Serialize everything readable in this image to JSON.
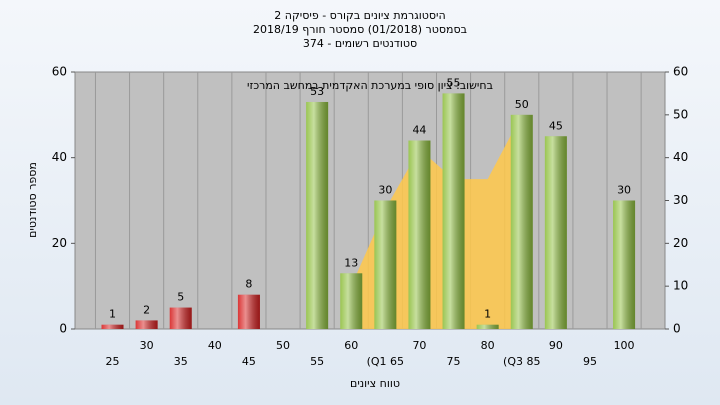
{
  "chart_data": {
    "type": "bar",
    "title": [
      "היסטוגרמת ציונים בקורס - פיסיקה 2",
      "בסמסטר (01/2018) סמסטר חורף 2018/19",
      "סטודנטים רשומים - 374"
    ],
    "annotation": "בחישוב: ציון סופי במערכת האקדמית במחשב המרכזי",
    "x_label": "טווח ציונים",
    "y_label": "מספר סטודנטים",
    "categories": [
      "25",
      "30",
      "35",
      "40",
      "45",
      "50",
      "55",
      "60",
      "(Q1 65",
      "70",
      "75",
      "80",
      "(Q3 85",
      "90",
      "95",
      "100"
    ],
    "values": [
      1,
      2,
      5,
      null,
      8,
      null,
      53,
      13,
      30,
      44,
      55,
      1,
      50,
      45,
      null,
      30
    ],
    "colors": [
      "#d62020",
      "#d62020",
      "#d62020",
      null,
      "#d62020",
      null,
      "#8fbf3f",
      "#8fbf3f",
      "#8fbf3f",
      "#8fbf3f",
      "#8fbf3f",
      "#8fbf3f",
      "#8fbf3f",
      "#8fbf3f",
      null,
      "#8fbf3f"
    ],
    "area": [
      null,
      null,
      null,
      null,
      null,
      null,
      null,
      10,
      28,
      42,
      35,
      35,
      50,
      null,
      null,
      null
    ],
    "area_color": "#ffc84a",
    "ylim": [
      0,
      60
    ],
    "yticks": [
      0,
      20,
      40,
      60
    ],
    "y2lim": [
      0,
      60
    ],
    "y2ticks": [
      0,
      10,
      20,
      30,
      40,
      50,
      60
    ],
    "grid": true
  }
}
